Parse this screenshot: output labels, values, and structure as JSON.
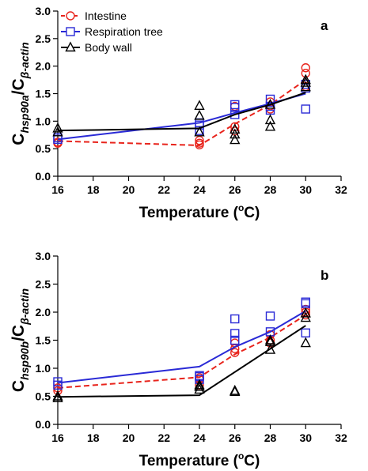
{
  "chart_data": [
    {
      "type": "scatter",
      "panel_label": "a",
      "ylabel_main": "C",
      "ylabel_sub1": "hsp90a",
      "ylabel_mid": "/C",
      "ylabel_sub2": "β-actin",
      "xlabel_main": "Temperature (",
      "xlabel_sup": "o",
      "xlabel_end": "C)",
      "xlim": [
        16,
        32
      ],
      "ylim": [
        0,
        3.0
      ],
      "xticks": [
        "16",
        "18",
        "20",
        "22",
        "24",
        "26",
        "28",
        "30",
        "32"
      ],
      "yticks": [
        "0.0",
        "0.5",
        "1.0",
        "1.5",
        "2.0",
        "2.5",
        "3.0"
      ],
      "legend": {
        "position": "top-left"
      },
      "series": [
        {
          "name": "Intestine",
          "color": "#e8241c",
          "marker": "circle",
          "line": "dashed",
          "points": [
            [
              16,
              0.6
            ],
            [
              16,
              0.62
            ],
            [
              24,
              0.57
            ],
            [
              24,
              0.6
            ],
            [
              24,
              0.65
            ],
            [
              26,
              0.82
            ],
            [
              26,
              0.9
            ],
            [
              26,
              1.27
            ],
            [
              28,
              1.22
            ],
            [
              28,
              1.28
            ],
            [
              28,
              1.35
            ],
            [
              30,
              1.87
            ],
            [
              30,
              1.97
            ],
            [
              30,
              1.63
            ]
          ],
          "line_x": [
            16,
            24,
            26,
            28,
            30
          ],
          "line_y": [
            0.64,
            0.56,
            0.95,
            1.3,
            1.75
          ]
        },
        {
          "name": "Respiration tree",
          "color": "#2a2ad6",
          "marker": "square",
          "line": "solid",
          "points": [
            [
              16,
              0.67
            ],
            [
              16,
              0.7
            ],
            [
              24,
              0.83
            ],
            [
              24,
              0.93
            ],
            [
              24,
              0.97
            ],
            [
              26,
              1.12
            ],
            [
              26,
              1.25
            ],
            [
              26,
              1.3
            ],
            [
              28,
              1.2
            ],
            [
              28,
              1.27
            ],
            [
              28,
              1.4
            ],
            [
              30,
              1.22
            ],
            [
              30,
              1.6
            ],
            [
              30,
              1.67
            ]
          ],
          "line_x": [
            16,
            24,
            26,
            28,
            30
          ],
          "line_y": [
            0.67,
            0.97,
            1.15,
            1.32,
            1.5
          ]
        },
        {
          "name": "Body wall",
          "color": "#000000",
          "marker": "triangle",
          "line": "solid",
          "points": [
            [
              16,
              0.8
            ],
            [
              16,
              0.87
            ],
            [
              24,
              0.8
            ],
            [
              24,
              1.1
            ],
            [
              24,
              1.28
            ],
            [
              26,
              0.66
            ],
            [
              26,
              0.76
            ],
            [
              26,
              0.85
            ],
            [
              28,
              0.9
            ],
            [
              28,
              1.02
            ],
            [
              28,
              1.3
            ],
            [
              30,
              1.62
            ],
            [
              30,
              1.7
            ],
            [
              30,
              1.75
            ]
          ],
          "line_x": [
            16,
            24,
            26,
            28,
            30
          ],
          "line_y": [
            0.83,
            0.87,
            1.12,
            1.3,
            1.52
          ]
        }
      ]
    },
    {
      "type": "scatter",
      "panel_label": "b",
      "ylabel_main": "C",
      "ylabel_sub1": "hsp90b",
      "ylabel_mid": "/C",
      "ylabel_sub2": "β-actin",
      "xlabel_main": "Temperature (",
      "xlabel_sup": "o",
      "xlabel_end": "C)",
      "xlim": [
        16,
        32
      ],
      "ylim": [
        0,
        3.0
      ],
      "xticks": [
        "16",
        "18",
        "20",
        "22",
        "24",
        "26",
        "28",
        "30",
        "32"
      ],
      "yticks": [
        "0.0",
        "0.5",
        "1.0",
        "1.5",
        "2.0",
        "2.5",
        "3.0"
      ],
      "series": [
        {
          "name": "Intestine",
          "color": "#e8241c",
          "marker": "circle",
          "line": "dashed",
          "points": [
            [
              16,
              0.6
            ],
            [
              16,
              0.65
            ],
            [
              24,
              0.7
            ],
            [
              24,
              0.8
            ],
            [
              24,
              0.83
            ],
            [
              26,
              1.28
            ],
            [
              26,
              1.35
            ],
            [
              26,
              1.45
            ],
            [
              28,
              1.45
            ],
            [
              28,
              1.5
            ],
            [
              28,
              1.6
            ],
            [
              30,
              1.95
            ],
            [
              30,
              2.0
            ],
            [
              30,
              2.05
            ]
          ],
          "line_x": [
            16,
            24,
            26,
            28,
            30
          ],
          "line_y": [
            0.65,
            0.84,
            1.25,
            1.55,
            1.95
          ]
        },
        {
          "name": "Respiration tree",
          "color": "#2a2ad6",
          "marker": "square",
          "line": "solid",
          "points": [
            [
              16,
              0.7
            ],
            [
              16,
              0.76
            ],
            [
              24,
              0.8
            ],
            [
              24,
              0.85
            ],
            [
              24,
              0.87
            ],
            [
              26,
              1.5
            ],
            [
              26,
              1.62
            ],
            [
              26,
              1.88
            ],
            [
              28,
              1.65
            ],
            [
              28,
              1.93
            ],
            [
              30,
              1.63
            ],
            [
              30,
              2.15
            ],
            [
              30,
              2.18
            ]
          ],
          "line_x": [
            16,
            24,
            26,
            28,
            30
          ],
          "line_y": [
            0.74,
            1.03,
            1.38,
            1.65,
            2.02
          ]
        },
        {
          "name": "Body wall",
          "color": "#000000",
          "marker": "triangle",
          "line": "solid",
          "points": [
            [
              16,
              0.47
            ],
            [
              16,
              0.5
            ],
            [
              24,
              0.62
            ],
            [
              24,
              0.67
            ],
            [
              24,
              0.7
            ],
            [
              26,
              0.58
            ],
            [
              26,
              0.6
            ],
            [
              28,
              1.33
            ],
            [
              28,
              1.47
            ],
            [
              28,
              1.5
            ],
            [
              30,
              1.45
            ],
            [
              30,
              1.9
            ],
            [
              30,
              1.98
            ]
          ],
          "line_x": [
            16,
            24,
            30
          ],
          "line_y": [
            0.49,
            0.52,
            1.76
          ]
        }
      ]
    }
  ]
}
